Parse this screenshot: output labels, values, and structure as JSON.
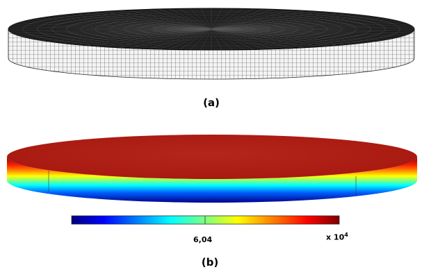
{
  "panels": [
    {
      "label": "(a)",
      "content": "mesh-disk"
    },
    {
      "label": "(b)",
      "content": "field-disk"
    }
  ],
  "colorbar": {
    "mid_label": "6,04",
    "scale_base": "x 10",
    "scale_exponent": "4",
    "colormap": [
      "#00007f",
      "#0000ff",
      "#00ffff",
      "#7fff7f",
      "#ffff00",
      "#ff7f00",
      "#ff0000",
      "#7f0000"
    ]
  },
  "colors": {
    "mesh_top": "#111111",
    "mesh_side": "#f2f2f2",
    "mesh_lines": "#333333",
    "field_top": "#b81e14"
  }
}
